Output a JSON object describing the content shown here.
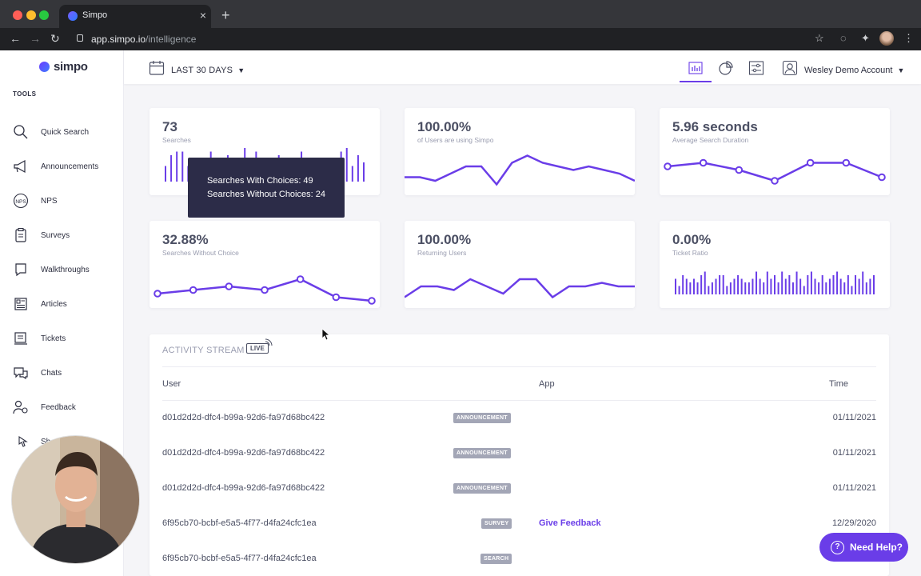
{
  "browser": {
    "tab_title": "Simpo",
    "tab_close": "×",
    "new_tab": "+",
    "url_host": "app.simpo.io",
    "url_path": "/intelligence"
  },
  "sidebar": {
    "brand": "simpo",
    "section_label": "TOOLS",
    "items": [
      {
        "label": "Quick Search",
        "icon": "search-icon"
      },
      {
        "label": "Announcements",
        "icon": "megaphone-icon"
      },
      {
        "label": "NPS",
        "icon": "nps-icon"
      },
      {
        "label": "Surveys",
        "icon": "clipboard-icon"
      },
      {
        "label": "Walkthroughs",
        "icon": "chat-bubble-icon"
      },
      {
        "label": "Articles",
        "icon": "article-icon"
      },
      {
        "label": "Tickets",
        "icon": "ticket-icon"
      },
      {
        "label": "Chats",
        "icon": "chats-icon"
      },
      {
        "label": "Feedback",
        "icon": "feedback-icon"
      },
      {
        "label": "Sh",
        "icon": "pointer-icon"
      }
    ],
    "nps_icon_text": "NPS"
  },
  "topbar": {
    "date_range": "LAST 30 DAYS",
    "account": "Wesley Demo Account"
  },
  "metrics": [
    {
      "value": "73",
      "label": "Searches",
      "chart": "bar"
    },
    {
      "value": "100.00%",
      "label": "of Users are using Simpo",
      "chart": "line"
    },
    {
      "value": "5.96 seconds",
      "label": "Average Search Duration",
      "chart": "dotline"
    },
    {
      "value": "32.88%",
      "label": "Searches Without Choice",
      "chart": "dotline"
    },
    {
      "value": "100.00%",
      "label": "Returning Users",
      "chart": "line"
    },
    {
      "value": "0.00%",
      "label": "Ticket Ratio",
      "chart": "bar"
    }
  ],
  "tooltip": {
    "line1": "Searches With Choices: 49",
    "line2": "Searches Without Choices: 24"
  },
  "chart_data": [
    {
      "type": "bar",
      "values": [
        5,
        8,
        9,
        9,
        5,
        6,
        4,
        5,
        9,
        6,
        5,
        8,
        4,
        6,
        10,
        5,
        9,
        6,
        7,
        5,
        8,
        4,
        6,
        5,
        9,
        6,
        7,
        5,
        6,
        4,
        5,
        9,
        10,
        5,
        8,
        6
      ],
      "ylim": [
        0,
        10
      ]
    },
    {
      "type": "line",
      "values": [
        3,
        3,
        2,
        4,
        6,
        6,
        1,
        7,
        9,
        7,
        6,
        5,
        6,
        5,
        4,
        2
      ],
      "ylim": [
        0,
        10
      ]
    },
    {
      "type": "line",
      "values": [
        6,
        7,
        5,
        2,
        7,
        7,
        3
      ],
      "markers": true,
      "ylim": [
        0,
        10
      ]
    },
    {
      "type": "line",
      "values": [
        2,
        3,
        4,
        3,
        6,
        1,
        0
      ],
      "markers": true,
      "ylim": [
        0,
        10
      ]
    },
    {
      "type": "line",
      "values": [
        1,
        4,
        4,
        3,
        6,
        4,
        2,
        6,
        6,
        1,
        4,
        4,
        5,
        4,
        4
      ],
      "ylim": [
        0,
        10
      ]
    },
    {
      "type": "bar",
      "values": [
        5,
        3,
        6,
        5,
        4,
        5,
        4,
        6,
        7,
        3,
        4,
        5,
        6,
        6,
        3,
        4,
        5,
        6,
        5,
        4,
        4,
        5,
        7,
        5,
        4,
        7,
        5,
        6,
        4,
        7,
        5,
        6,
        4,
        7,
        5,
        3,
        6,
        7,
        5,
        4,
        6,
        4,
        5,
        6,
        7,
        5,
        4,
        6,
        3,
        6,
        5,
        7,
        4,
        5,
        6
      ],
      "ylim": [
        0,
        10
      ]
    }
  ],
  "stream": {
    "title": "ACTIVITY STREAM",
    "live": "LIVE",
    "col_user": "User",
    "col_app": "App",
    "col_time": "Time",
    "rows": [
      {
        "user": "d01d2d2d-dfc4-b99a-92d6-fa97d68bc422",
        "type": "ANNOUNCEMENT",
        "app": "",
        "time": "01/11/2021"
      },
      {
        "user": "d01d2d2d-dfc4-b99a-92d6-fa97d68bc422",
        "type": "ANNOUNCEMENT",
        "app": "",
        "time": "01/11/2021"
      },
      {
        "user": "d01d2d2d-dfc4-b99a-92d6-fa97d68bc422",
        "type": "ANNOUNCEMENT",
        "app": "",
        "time": "01/11/2021"
      },
      {
        "user": "6f95cb70-bcbf-e5a5-4f77-d4fa24cfc1ea",
        "type": "SURVEY",
        "app": "Give Feedback",
        "time": "12/29/2020"
      },
      {
        "user": "6f95cb70-bcbf-e5a5-4f77-d4fa24cfc1ea",
        "type": "SEARCH",
        "app": "",
        "time": ""
      }
    ]
  },
  "help": {
    "label": "Need Help?",
    "icon_text": "?"
  },
  "colors": {
    "accent": "#6a3de8",
    "line": "#6a3de8",
    "badge": "#a3a6b6"
  }
}
